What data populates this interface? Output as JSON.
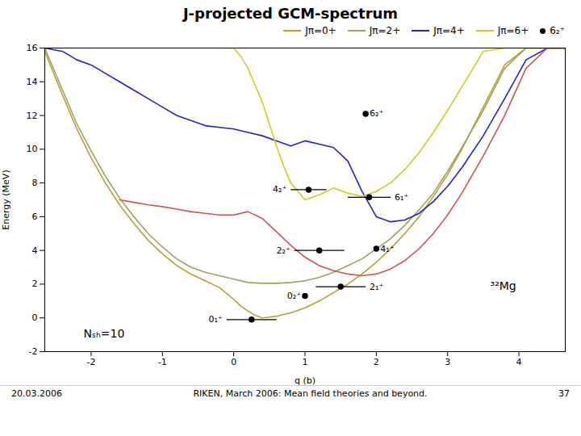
{
  "chart_data": {
    "type": "line",
    "title": "J-projected GCM-spectrum",
    "xlabel": "q (b)",
    "ylabel": "Energy (MeV)",
    "xlim": [
      -2.65,
      4.65
    ],
    "ylim": [
      -2,
      16
    ],
    "xticks": [
      -2,
      -1,
      0,
      1,
      2,
      3,
      4
    ],
    "yticks": [
      -2,
      0,
      2,
      4,
      6,
      8,
      10,
      12,
      14,
      16
    ],
    "legend": "upper right",
    "series": [
      {
        "name": "Jπ=0+",
        "color": "#b8a030",
        "x": [
          -2.65,
          -2.4,
          -2.2,
          -2.0,
          -1.8,
          -1.6,
          -1.4,
          -1.2,
          -1.0,
          -0.8,
          -0.6,
          -0.4,
          -0.2,
          0.0,
          0.1,
          0.2,
          0.3,
          0.4,
          0.5,
          0.6,
          0.7,
          0.8,
          1.0,
          1.2,
          1.4,
          1.6,
          1.8,
          2.0,
          2.2,
          2.4,
          2.6,
          2.8,
          3.0,
          3.2,
          3.5,
          3.8,
          4.1,
          4.4,
          4.65
        ],
        "values": [
          15.8,
          13.2,
          11.2,
          9.5,
          8.0,
          6.7,
          5.6,
          4.6,
          3.8,
          3.1,
          2.6,
          2.2,
          1.8,
          1.1,
          0.7,
          0.4,
          0.15,
          0.0,
          0.05,
          0.1,
          0.2,
          0.3,
          0.6,
          1.0,
          1.5,
          2.0,
          2.6,
          3.3,
          4.1,
          5.0,
          6.0,
          7.2,
          8.5,
          10.0,
          12.5,
          15.0,
          16.0,
          16.0,
          16.0
        ]
      },
      {
        "name": "Jπ=2+",
        "color": "#a0a060",
        "x": [
          -2.65,
          -2.4,
          -2.2,
          -2.0,
          -1.8,
          -1.6,
          -1.4,
          -1.2,
          -1.0,
          -0.8,
          -0.6,
          -0.4,
          -0.2,
          0.0,
          0.2,
          0.4,
          0.6,
          0.8,
          1.0,
          1.2,
          1.4,
          1.6,
          1.8,
          2.0,
          2.2,
          2.4,
          2.6,
          2.8,
          3.0,
          3.2,
          3.5,
          3.8,
          4.1,
          4.4,
          4.65
        ],
        "values": [
          16.0,
          13.5,
          11.5,
          9.9,
          8.4,
          7.1,
          6.0,
          5.0,
          4.2,
          3.5,
          3.0,
          2.7,
          2.5,
          2.3,
          2.1,
          2.05,
          2.05,
          2.1,
          2.2,
          2.4,
          2.7,
          3.1,
          3.5,
          4.1,
          4.7,
          5.5,
          6.4,
          7.4,
          8.7,
          10.1,
          12.3,
          14.8,
          16.0,
          16.0,
          16.0
        ]
      },
      {
        "name": "Jπ=4+",
        "color": "#2222cc",
        "x": [
          -2.65,
          -2.4,
          -2.2,
          -2.0,
          -1.8,
          -1.6,
          -1.4,
          -1.2,
          -1.0,
          -0.8,
          -0.6,
          -0.4,
          -0.2,
          0.0,
          0.2,
          0.4,
          0.6,
          0.8,
          1.0,
          1.2,
          1.4,
          1.6,
          1.8,
          2.0,
          2.2,
          2.4,
          2.6,
          2.8,
          3.0,
          3.2,
          3.5,
          3.8,
          4.1,
          4.4,
          4.65
        ],
        "values": [
          16.0,
          15.8,
          15.3,
          15.0,
          14.5,
          14.0,
          13.5,
          13.0,
          12.5,
          12.0,
          11.7,
          11.4,
          11.3,
          11.2,
          11.0,
          10.8,
          10.5,
          10.2,
          10.5,
          10.3,
          10.1,
          9.3,
          7.5,
          6.0,
          5.7,
          5.8,
          6.2,
          6.9,
          7.8,
          8.9,
          10.8,
          13.0,
          15.3,
          16.0,
          16.0
        ]
      },
      {
        "name": "Jπ=6+",
        "color": "#cccc22",
        "x": [
          -0.1,
          0.0,
          0.1,
          0.2,
          0.3,
          0.4,
          0.5,
          0.6,
          0.7,
          0.8,
          1.0,
          1.2,
          1.4,
          1.6,
          1.8,
          2.0,
          2.2,
          2.4,
          2.6,
          2.8,
          3.0,
          3.2,
          3.5,
          3.8,
          4.1,
          4.4,
          4.65
        ],
        "values": [
          16.0,
          16.0,
          15.5,
          14.8,
          13.8,
          12.8,
          11.5,
          10.2,
          9.0,
          8.0,
          7.0,
          7.3,
          7.7,
          7.4,
          7.2,
          7.5,
          8.0,
          8.8,
          9.8,
          11.0,
          12.3,
          13.7,
          15.8,
          16.0,
          16.0,
          16.0,
          16.0
        ]
      },
      {
        "name": null,
        "color": "#cc5555",
        "x": [
          -1.6,
          -1.4,
          -1.2,
          -1.0,
          -0.8,
          -0.6,
          -0.4,
          -0.2,
          0.0,
          0.2,
          0.4,
          0.6,
          0.8,
          1.0,
          1.2,
          1.4,
          1.6,
          1.8,
          2.0,
          2.2,
          2.4,
          2.6,
          2.8,
          3.0,
          3.2,
          3.5,
          3.8,
          4.1,
          4.4,
          4.65
        ],
        "values": [
          7.0,
          6.85,
          6.7,
          6.6,
          6.45,
          6.3,
          6.2,
          6.1,
          6.1,
          6.3,
          5.9,
          5.1,
          4.3,
          3.6,
          3.1,
          2.8,
          2.6,
          2.5,
          2.6,
          2.9,
          3.4,
          4.1,
          5.0,
          6.1,
          7.4,
          9.6,
          12.0,
          14.8,
          16.0,
          16.0
        ]
      },
      {
        "name": "6₂⁺",
        "type": "scatter",
        "color": "black",
        "marker": "circle",
        "x": [
          0.25,
          1.0,
          1.5,
          1.2,
          2.0,
          1.05,
          1.9,
          1.85
        ],
        "values": [
          -0.1,
          1.3,
          1.85,
          4.0,
          4.1,
          7.6,
          7.15,
          12.1
        ],
        "xerr": [
          0.35,
          0.0,
          0.35,
          0.35,
          0.0,
          0.25,
          0.3,
          0.0
        ],
        "point_labels": [
          "0₁⁺",
          "0₂⁺",
          "2₁⁺",
          "2₂⁺",
          "4₁⁺",
          "4₂⁺",
          "6₁⁺",
          "6₂⁺"
        ],
        "label_x": [
          0.0,
          0.75,
          1.65,
          0.85,
          2.1,
          0.78,
          2.0,
          2.0
        ]
      }
    ],
    "annotations": [
      {
        "text": "Nₛₕ=10",
        "x": -1.82,
        "y": -0.93
      },
      {
        "text": "³²Mg",
        "x": 3.78,
        "y": 1.87
      }
    ],
    "footer": [
      "20.03.2006",
      "RIKEN, March 2006: Mean field theories and beyond.",
      "37"
    ]
  }
}
